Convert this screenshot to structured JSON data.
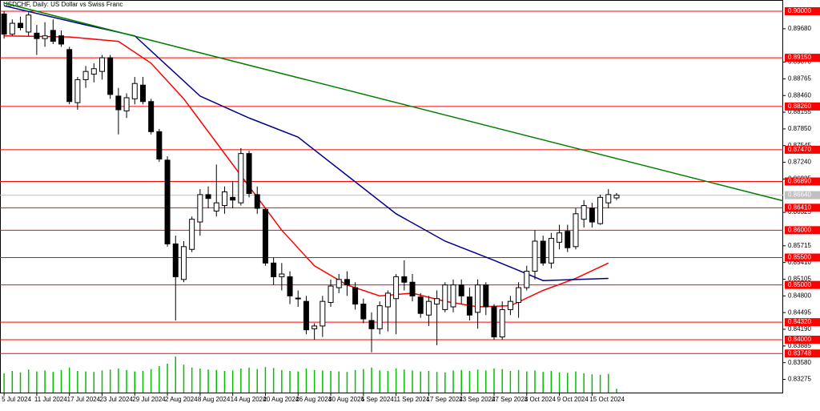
{
  "chart_data": {
    "type": "candlestick",
    "title": "USDCHF, Daily: US Dollar vs Swiss Franc",
    "xlim": [
      -0.5,
      95.4
    ],
    "xticks": [
      {
        "value": 0,
        "label": "5 Jul 2024"
      },
      {
        "value": 4,
        "label": "11 Jul 2024"
      },
      {
        "value": 8,
        "label": "17 Jul 2024"
      },
      {
        "value": 12,
        "label": "23 Jul 2024"
      },
      {
        "value": 16,
        "label": "29 Jul 2024"
      },
      {
        "value": 20,
        "label": "2 Aug 2024"
      },
      {
        "value": 24,
        "label": "8 Aug 2024"
      },
      {
        "value": 28,
        "label": "14 Aug 2024"
      },
      {
        "value": 32,
        "label": "20 Aug 2024"
      },
      {
        "value": 36,
        "label": "26 Aug 2024"
      },
      {
        "value": 40,
        "label": "30 Aug 2024"
      },
      {
        "value": 44,
        "label": "5 Sep 2024"
      },
      {
        "value": 48,
        "label": "11 Sep 2024"
      },
      {
        "value": 52,
        "label": "17 Sep 2024"
      },
      {
        "value": 56,
        "label": "23 Sep 2024"
      },
      {
        "value": 60,
        "label": "27 Sep 2024"
      },
      {
        "value": 64,
        "label": "3 Oct 2024"
      },
      {
        "value": 68,
        "label": "9 Oct 2024"
      },
      {
        "value": 72,
        "label": "15 Oct 2024"
      }
    ],
    "ylim": [
      0.83034,
      0.90205
    ],
    "yticks": [
      {
        "value": 0.8968,
        "label": "0.89680"
      },
      {
        "value": 0.8907,
        "label": "0.89070"
      },
      {
        "value": 0.88765,
        "label": "0.88765"
      },
      {
        "value": 0.8846,
        "label": "0.88460"
      },
      {
        "value": 0.88155,
        "label": "0.88155"
      },
      {
        "value": 0.8785,
        "label": "0.87850"
      },
      {
        "value": 0.87545,
        "label": "0.87545"
      },
      {
        "value": 0.8724,
        "label": "0.87240"
      },
      {
        "value": 0.86935,
        "label": "0.86935"
      },
      {
        "value": 0.86325,
        "label": "0.86325"
      },
      {
        "value": 0.85715,
        "label": "0.85715"
      },
      {
        "value": 0.8541,
        "label": "0.85410"
      },
      {
        "value": 0.85105,
        "label": "0.85105"
      },
      {
        "value": 0.848,
        "label": "0.84800"
      },
      {
        "value": 0.84495,
        "label": "0.84495"
      },
      {
        "value": 0.8419,
        "label": "0.84190"
      },
      {
        "value": 0.83885,
        "label": "0.83885"
      },
      {
        "value": 0.8358,
        "label": "0.83580"
      },
      {
        "value": 0.83275,
        "label": "0.83275"
      }
    ],
    "levels_color": "#ff0000",
    "levels": [
      {
        "value": 0.9,
        "label": "0.90000"
      },
      {
        "value": 0.8915,
        "label": "0.89150"
      },
      {
        "value": 0.8826,
        "label": "0.88260"
      },
      {
        "value": 0.8747,
        "label": "0.87470"
      },
      {
        "value": 0.8689,
        "label": "0.86890"
      },
      {
        "value": 0.8641,
        "label": "0.86410"
      },
      {
        "value": 0.86,
        "label": "0.86000"
      },
      {
        "value": 0.855,
        "label": "0.85500"
      },
      {
        "value": 0.85,
        "label": "0.85000"
      },
      {
        "value": 0.8432,
        "label": "0.84320"
      },
      {
        "value": 0.84,
        "label": "0.84000"
      },
      {
        "value": 0.83748,
        "label": "0.83748"
      }
    ],
    "current_price": {
      "value": 0.8664,
      "label": "0.86640"
    },
    "open": [
      0.8995,
      0.8958,
      0.8978,
      0.8962,
      0.896,
      0.895,
      0.8965,
      0.8955,
      0.893,
      0.8833,
      0.8875,
      0.8885,
      0.889,
      0.8915,
      0.8845,
      0.8818,
      0.884,
      0.8865,
      0.8835,
      0.878,
      0.8728,
      0.8575,
      0.851,
      0.8565,
      0.8615,
      0.8665,
      0.8635,
      0.8645,
      0.866,
      0.865,
      0.874,
      0.8665,
      0.8638,
      0.854,
      0.8515,
      0.8515,
      0.8475,
      0.847,
      0.842,
      0.8425,
      0.8468,
      0.8495,
      0.851,
      0.8495,
      0.8465,
      0.8435,
      0.842,
      0.846,
      0.8475,
      0.8515,
      0.8505,
      0.8478,
      0.8445,
      0.8465,
      0.8455,
      0.846,
      0.85,
      0.8478,
      0.845,
      0.85,
      0.846,
      0.8405,
      0.8455,
      0.8468,
      0.8495,
      0.8525,
      0.858,
      0.854,
      0.8578,
      0.8598,
      0.857,
      0.862,
      0.864,
      0.8612,
      0.865,
      0.8659
    ],
    "high": [
      0.9,
      0.8985,
      0.899,
      0.8998,
      0.8975,
      0.898,
      0.8985,
      0.8965,
      0.8935,
      0.888,
      0.89,
      0.8905,
      0.892,
      0.892,
      0.886,
      0.885,
      0.888,
      0.888,
      0.884,
      0.8785,
      0.8735,
      0.859,
      0.858,
      0.8625,
      0.8675,
      0.868,
      0.872,
      0.868,
      0.869,
      0.875,
      0.8745,
      0.868,
      0.864,
      0.855,
      0.854,
      0.8525,
      0.849,
      0.848,
      0.843,
      0.848,
      0.851,
      0.852,
      0.8525,
      0.8505,
      0.8475,
      0.845,
      0.847,
      0.849,
      0.852,
      0.8545,
      0.852,
      0.8485,
      0.848,
      0.849,
      0.8505,
      0.851,
      0.851,
      0.8495,
      0.851,
      0.8505,
      0.8465,
      0.847,
      0.848,
      0.8505,
      0.8535,
      0.86,
      0.859,
      0.8595,
      0.861,
      0.861,
      0.864,
      0.8655,
      0.865,
      0.8665,
      0.8675,
      0.8668
    ],
    "low": [
      0.895,
      0.8955,
      0.8965,
      0.8955,
      0.892,
      0.8935,
      0.894,
      0.8935,
      0.883,
      0.882,
      0.886,
      0.887,
      0.8875,
      0.884,
      0.8775,
      0.8805,
      0.883,
      0.883,
      0.8775,
      0.8725,
      0.857,
      0.8435,
      0.8505,
      0.856,
      0.859,
      0.864,
      0.8625,
      0.863,
      0.864,
      0.8645,
      0.866,
      0.863,
      0.8535,
      0.85,
      0.849,
      0.8465,
      0.846,
      0.841,
      0.84,
      0.8405,
      0.846,
      0.8485,
      0.848,
      0.8455,
      0.843,
      0.8377,
      0.841,
      0.8415,
      0.841,
      0.849,
      0.847,
      0.844,
      0.8425,
      0.839,
      0.845,
      0.845,
      0.8465,
      0.8435,
      0.842,
      0.8445,
      0.84,
      0.84,
      0.8445,
      0.844,
      0.849,
      0.851,
      0.8535,
      0.853,
      0.8565,
      0.856,
      0.8565,
      0.8605,
      0.8605,
      0.861,
      0.864,
      0.8655
    ],
    "close": [
      0.8958,
      0.8978,
      0.897,
      0.8993,
      0.895,
      0.8955,
      0.8945,
      0.894,
      0.8835,
      0.8875,
      0.889,
      0.8895,
      0.8915,
      0.8848,
      0.882,
      0.8842,
      0.8868,
      0.8835,
      0.878,
      0.873,
      0.8575,
      0.8515,
      0.857,
      0.862,
      0.8665,
      0.8658,
      0.865,
      0.867,
      0.8655,
      0.874,
      0.8667,
      0.864,
      0.854,
      0.8515,
      0.852,
      0.848,
      0.8476,
      0.8418,
      0.8425,
      0.847,
      0.8498,
      0.851,
      0.85,
      0.8465,
      0.8438,
      0.842,
      0.8462,
      0.8485,
      0.8515,
      0.8505,
      0.848,
      0.8448,
      0.847,
      0.8475,
      0.85,
      0.85,
      0.848,
      0.8445,
      0.85,
      0.846,
      0.8405,
      0.8455,
      0.847,
      0.8495,
      0.8525,
      0.858,
      0.854,
      0.8585,
      0.8595,
      0.8568,
      0.863,
      0.8645,
      0.8615,
      0.866,
      0.8665,
      0.8664
    ],
    "volume_color": "#00c000",
    "volume_lim": [
      0,
      100
    ],
    "volume": [
      40,
      45,
      42,
      48,
      44,
      46,
      43,
      47,
      52,
      45,
      44,
      43,
      46,
      48,
      50,
      47,
      44,
      45,
      49,
      55,
      60,
      75,
      58,
      52,
      50,
      48,
      47,
      45,
      46,
      50,
      52,
      49,
      53,
      51,
      47,
      45,
      44,
      50,
      47,
      46,
      45,
      44,
      43,
      47,
      49,
      52,
      46,
      45,
      50,
      48,
      46,
      44,
      45,
      43,
      42,
      46,
      47,
      45,
      48,
      46,
      50,
      49,
      45,
      47,
      44,
      46,
      43,
      45,
      42,
      41,
      44,
      40,
      38,
      37,
      39,
      8
    ],
    "lines": [
      {
        "color": "#ff0000",
        "x": [
          0,
          8,
          14,
          18,
          22,
          26,
          30,
          34,
          38,
          42,
          46,
          50,
          54,
          58,
          62,
          66,
          70,
          74
        ],
        "values": [
          0.8955,
          0.8953,
          0.8945,
          0.8905,
          0.884,
          0.876,
          0.868,
          0.86,
          0.8535,
          0.85,
          0.848,
          0.8485,
          0.847,
          0.846,
          0.8462,
          0.849,
          0.8512,
          0.854
        ]
      },
      {
        "color": "#00008b",
        "x": [
          0,
          10,
          16,
          20,
          24,
          30,
          36,
          42,
          48,
          54,
          60,
          66,
          70,
          74
        ],
        "values": [
          0.901,
          0.8975,
          0.8955,
          0.89,
          0.8845,
          0.8805,
          0.877,
          0.87,
          0.863,
          0.858,
          0.8545,
          0.8508,
          0.851,
          0.8512
        ]
      },
      {
        "color": "#008000",
        "x": [
          0,
          99
        ],
        "values": [
          0.9015,
          0.864
        ]
      }
    ]
  }
}
